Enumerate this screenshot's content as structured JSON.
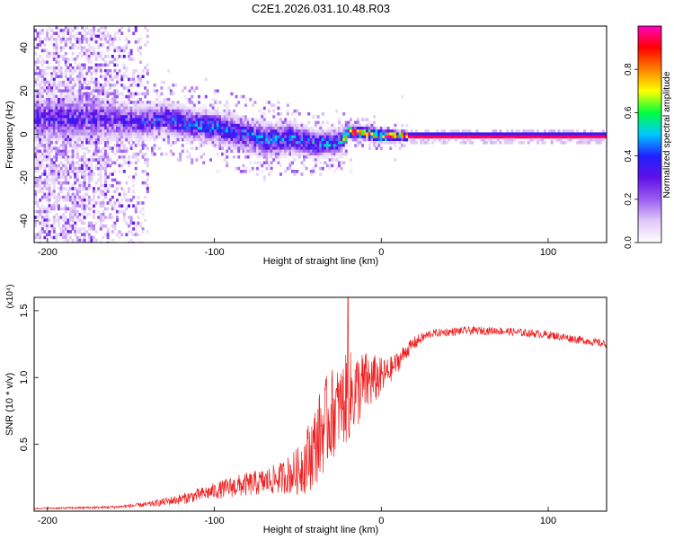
{
  "figure": {
    "title": "C2E1.2026.031.10.48.R03"
  },
  "chart_data": [
    {
      "type": "heatmap",
      "xlabel": "Height of straight line (km)",
      "ylabel": "Frequency (Hz)",
      "xlim": [
        -208,
        135
      ],
      "ylim": [
        -50,
        50
      ],
      "xticks": [
        -200,
        -100,
        0,
        100
      ],
      "yticks": [
        -40,
        -20,
        0,
        20,
        40
      ],
      "grid": false,
      "colorbar": {
        "label": "Normalized spectral amplitude",
        "range": [
          0,
          1
        ],
        "ticks": [
          0.0,
          0.2,
          0.4,
          0.6,
          0.8
        ],
        "colormap": [
          "#ffffff",
          "#e0c8f8",
          "#9b5cf0",
          "#6010e8",
          "#2020ff",
          "#00c8ff",
          "#00ff40",
          "#ffff00",
          "#ff8000",
          "#ff0000",
          "#ff00c0"
        ]
      },
      "ridge": [
        {
          "x": -175,
          "f": 8,
          "spread": 7,
          "amp": 0.32
        },
        {
          "x": -160,
          "f": 7,
          "spread": 6,
          "amp": 0.3
        },
        {
          "x": -145,
          "f": 6,
          "spread": 5,
          "amp": 0.35
        },
        {
          "x": -130,
          "f": 8,
          "spread": 5,
          "amp": 0.4
        },
        {
          "x": -115,
          "f": 5,
          "spread": 5,
          "amp": 0.42
        },
        {
          "x": -100,
          "f": 4,
          "spread": 5,
          "amp": 0.45
        },
        {
          "x": -85,
          "f": 1,
          "spread": 5,
          "amp": 0.42
        },
        {
          "x": -70,
          "f": -2,
          "spread": 5,
          "amp": 0.45
        },
        {
          "x": -55,
          "f": -1,
          "spread": 5,
          "amp": 0.45
        },
        {
          "x": -40,
          "f": -4,
          "spread": 4,
          "amp": 0.5
        },
        {
          "x": -25,
          "f": -3,
          "spread": 4,
          "amp": 0.45
        },
        {
          "x": -20,
          "f": 2,
          "spread": 2,
          "amp": 0.9
        },
        {
          "x": -10,
          "f": 1,
          "spread": 2,
          "amp": 0.92
        },
        {
          "x": 0,
          "f": 0,
          "spread": 2,
          "amp": 0.95
        },
        {
          "x": 15,
          "f": 0,
          "spread": 1.5,
          "amp": 0.95
        },
        {
          "x": 135,
          "f": 0,
          "spread": 1.5,
          "amp": 0.95
        }
      ]
    },
    {
      "type": "line",
      "xlabel": "Height of straight line (km)",
      "ylabel": "SNR (10 * v/v)",
      "y_multiplier": "(x10⁴)",
      "xlim": [
        -208,
        135
      ],
      "ylim": [
        0,
        1.6
      ],
      "xticks": [
        -200,
        -100,
        0,
        100
      ],
      "yticks": [
        0.5,
        1.0,
        1.5
      ],
      "color": "#ee2020",
      "series": [
        {
          "x": [
            -208,
            -180,
            -160,
            -150,
            -140,
            -130,
            -120,
            -110,
            -100,
            -90,
            -80,
            -70,
            -60,
            -50,
            -45,
            -40,
            -35,
            -30,
            -25,
            -20,
            -15,
            -10,
            -5,
            0,
            5,
            10,
            15,
            20,
            25,
            30,
            40,
            50,
            60,
            70,
            80,
            90,
            100,
            110,
            120,
            135
          ],
          "y": [
            0.02,
            0.025,
            0.03,
            0.04,
            0.05,
            0.07,
            0.09,
            0.12,
            0.15,
            0.18,
            0.2,
            0.22,
            0.25,
            0.3,
            0.38,
            0.48,
            0.62,
            0.72,
            0.78,
            0.85,
            0.9,
            0.95,
            0.98,
            1.0,
            1.05,
            1.12,
            1.2,
            1.26,
            1.3,
            1.33,
            1.34,
            1.35,
            1.35,
            1.35,
            1.34,
            1.33,
            1.32,
            1.3,
            1.28,
            1.25
          ],
          "noise": [
            0.005,
            0.008,
            0.01,
            0.015,
            0.02,
            0.03,
            0.04,
            0.05,
            0.06,
            0.08,
            0.09,
            0.1,
            0.12,
            0.18,
            0.25,
            0.3,
            0.35,
            0.35,
            0.3,
            0.35,
            0.3,
            0.25,
            0.2,
            0.15,
            0.1,
            0.08,
            0.06,
            0.05,
            0.04,
            0.03,
            0.03,
            0.03,
            0.03,
            0.03,
            0.03,
            0.03,
            0.03,
            0.03,
            0.03,
            0.03
          ]
        }
      ],
      "spike": {
        "x": -20,
        "y": 1.62
      }
    }
  ]
}
